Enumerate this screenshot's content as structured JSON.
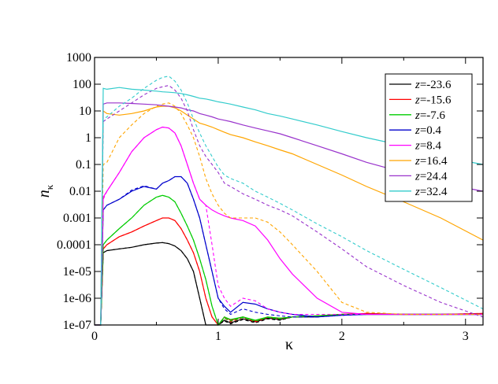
{
  "chart_data": {
    "type": "line",
    "xlabel": "κ",
    "ylabel": "n",
    "ylabel_subscript": "κ",
    "xlim": [
      0,
      3.14159
    ],
    "ylim": [
      1e-07,
      1000
    ],
    "yscale": "log",
    "x_ticks": [
      0,
      1,
      2,
      3
    ],
    "x_tick_labels": [
      "0",
      "1",
      "2",
      "3"
    ],
    "y_ticks": [
      1e-07,
      1e-06,
      1e-05,
      0.0001,
      0.001,
      0.01,
      0.1,
      1,
      10,
      100,
      1000
    ],
    "y_tick_labels": [
      "1e-07",
      "1e-06",
      "1e-05",
      "0.0001",
      "0.001",
      "0.01",
      "0.1",
      "1",
      "10",
      "100",
      "1000"
    ],
    "grid": false,
    "legend_position": "top-right",
    "line_styles": [
      "solid",
      "dashed"
    ],
    "series": [
      {
        "name": "z=-23.6",
        "legend_prefix": "z",
        "legend_value": "=-23.6",
        "color": "#000000",
        "x": [
          0,
          0.05,
          0.07,
          0.1,
          0.2,
          0.3,
          0.4,
          0.5,
          0.55,
          0.6,
          0.65,
          0.7,
          0.75,
          0.8,
          0.85,
          0.9,
          0.95,
          1.0,
          1.05,
          1.1,
          1.2,
          1.3,
          1.4,
          1.5,
          1.6,
          1.8,
          2.0,
          2.2,
          2.5,
          2.8,
          3.14
        ],
        "values": [
          1e-07,
          1e-07,
          5e-05,
          6e-05,
          7e-05,
          8e-05,
          0.0001,
          0.000115,
          0.00012,
          0.00011,
          9e-05,
          6e-05,
          3e-05,
          1e-05,
          1e-06,
          1e-07,
          1e-07,
          1e-07,
          1.5e-07,
          1.2e-07,
          1.7e-07,
          1.3e-07,
          1.8e-07,
          1.6e-07,
          2e-07,
          2e-07,
          2.5e-07,
          2.5e-07,
          2.5e-07,
          2.5e-07,
          2.5e-07
        ],
        "dashed_values": [
          1e-07,
          1e-07,
          5e-05,
          6e-05,
          7e-05,
          8e-05,
          0.0001,
          0.000115,
          0.00012,
          0.00011,
          9e-05,
          6e-05,
          3e-05,
          1e-05,
          1e-06,
          1e-07,
          1e-07,
          1e-07,
          1.4e-07,
          1.1e-07,
          1.6e-07,
          1.2e-07,
          1.7e-07,
          1.5e-07,
          2e-07,
          2e-07,
          2.5e-07,
          2.5e-07,
          2.5e-07,
          2.5e-07,
          2.5e-07
        ]
      },
      {
        "name": "z=-15.6",
        "legend_prefix": "z",
        "legend_value": "=-15.6",
        "color": "#ff0000",
        "x": [
          0,
          0.05,
          0.07,
          0.1,
          0.2,
          0.3,
          0.4,
          0.5,
          0.55,
          0.6,
          0.65,
          0.7,
          0.75,
          0.8,
          0.85,
          0.9,
          0.95,
          1.0,
          1.05,
          1.1,
          1.2,
          1.3,
          1.4,
          1.5,
          1.6,
          1.8,
          2.0,
          2.2,
          2.5,
          2.8,
          3.14
        ],
        "values": [
          1e-07,
          1e-07,
          7e-05,
          0.0001,
          0.0002,
          0.0003,
          0.0005,
          0.0008,
          0.001,
          0.001,
          0.0008,
          0.0004,
          0.00015,
          5e-05,
          1e-05,
          1e-06,
          2e-07,
          1e-07,
          2e-07,
          1.5e-07,
          2e-07,
          1.4e-07,
          2e-07,
          1.8e-07,
          2e-07,
          2.2e-07,
          2.5e-07,
          2.7e-07,
          2.5e-07,
          2.5e-07,
          2.7e-07
        ],
        "dashed_values": [
          1e-07,
          1e-07,
          7e-05,
          0.0001,
          0.0002,
          0.0003,
          0.0005,
          0.0008,
          0.001,
          0.001,
          0.0008,
          0.0004,
          0.00015,
          5e-05,
          1e-05,
          1e-06,
          2e-07,
          1e-07,
          1.8e-07,
          1.3e-07,
          1.9e-07,
          1.3e-07,
          1.9e-07,
          1.7e-07,
          2e-07,
          2.2e-07,
          2.5e-07,
          2.7e-07,
          2.5e-07,
          2.5e-07,
          2.7e-07
        ]
      },
      {
        "name": "z=-7.6",
        "legend_prefix": "z",
        "legend_value": "=-7.6",
        "color": "#00cc00",
        "x": [
          0,
          0.05,
          0.07,
          0.1,
          0.2,
          0.3,
          0.4,
          0.5,
          0.55,
          0.6,
          0.65,
          0.7,
          0.75,
          0.8,
          0.85,
          0.9,
          0.95,
          1.0,
          1.05,
          1.1,
          1.2,
          1.3,
          1.4,
          1.5,
          1.6,
          1.8,
          2.0,
          2.2,
          2.5,
          2.8,
          3.14
        ],
        "values": [
          1e-07,
          1e-07,
          0.0001,
          0.00015,
          0.0004,
          0.001,
          0.003,
          0.006,
          0.007,
          0.006,
          0.004,
          0.0015,
          0.0005,
          0.00015,
          3e-05,
          5e-06,
          5e-07,
          1e-07,
          2e-07,
          1.6e-07,
          2e-07,
          1.5e-07,
          2e-07,
          1.8e-07,
          2e-07,
          2.2e-07,
          2.5e-07,
          2.5e-07,
          2.5e-07,
          2.5e-07,
          2.5e-07
        ],
        "dashed_values": [
          1e-07,
          1e-07,
          0.0001,
          0.00015,
          0.0004,
          0.001,
          0.003,
          0.006,
          0.007,
          0.006,
          0.004,
          0.0015,
          0.0005,
          0.00015,
          3e-05,
          5e-06,
          5e-07,
          1e-07,
          1.8e-07,
          1.4e-07,
          1.9e-07,
          1.4e-07,
          1.9e-07,
          1.7e-07,
          2e-07,
          2.2e-07,
          2.5e-07,
          2.5e-07,
          2.5e-07,
          2.5e-07,
          2.5e-07
        ]
      },
      {
        "name": "z=0.4",
        "legend_prefix": "z",
        "legend_value": "=0.4",
        "color": "#0000cc",
        "x": [
          0,
          0.05,
          0.07,
          0.1,
          0.2,
          0.3,
          0.4,
          0.5,
          0.55,
          0.6,
          0.65,
          0.7,
          0.75,
          0.8,
          0.85,
          0.9,
          0.95,
          1.0,
          1.05,
          1.1,
          1.2,
          1.3,
          1.4,
          1.5,
          1.6,
          1.8,
          2.0,
          2.2,
          2.5,
          2.8,
          3.14
        ],
        "values": [
          1e-07,
          1e-07,
          0.002,
          0.003,
          0.005,
          0.01,
          0.015,
          0.012,
          0.02,
          0.025,
          0.035,
          0.035,
          0.02,
          0.005,
          0.001,
          0.0001,
          1e-05,
          1e-06,
          5e-07,
          3e-07,
          7e-07,
          6e-07,
          4e-07,
          3e-07,
          2.5e-07,
          2e-07,
          2.3e-07,
          2.5e-07,
          2.5e-07,
          2.5e-07,
          2.5e-07
        ],
        "dashed_values": [
          1e-07,
          1e-07,
          0.002,
          0.003,
          0.005,
          0.011,
          0.016,
          0.012,
          0.02,
          0.025,
          0.035,
          0.035,
          0.02,
          0.005,
          0.001,
          0.0001,
          1e-05,
          1e-06,
          4e-07,
          2.5e-07,
          4e-07,
          3e-07,
          2.5e-07,
          2.2e-07,
          2e-07,
          2e-07,
          2.3e-07,
          2.5e-07,
          2.5e-07,
          2.5e-07,
          2.5e-07
        ]
      },
      {
        "name": "z=8.4",
        "legend_prefix": "z",
        "legend_value": "=8.4",
        "color": "#ff00ff",
        "x": [
          0,
          0.05,
          0.07,
          0.1,
          0.2,
          0.3,
          0.4,
          0.5,
          0.55,
          0.6,
          0.65,
          0.7,
          0.75,
          0.8,
          0.85,
          0.9,
          0.95,
          1.0,
          1.05,
          1.1,
          1.2,
          1.3,
          1.4,
          1.5,
          1.6,
          1.8,
          2.0,
          2.2,
          2.5,
          2.8,
          3.14
        ],
        "values": [
          1e-07,
          1e-07,
          0.006,
          0.01,
          0.05,
          0.3,
          1,
          2,
          2.5,
          2.3,
          1.5,
          0.5,
          0.1,
          0.02,
          0.005,
          0.003,
          0.002,
          0.0015,
          0.0012,
          0.001,
          0.0008,
          0.0005,
          0.00015,
          3e-05,
          8e-06,
          1e-06,
          3e-07,
          2.5e-07,
          2.5e-07,
          2.5e-07,
          2.5e-07
        ],
        "dashed_values": [
          1e-07,
          1e-07,
          0.005,
          0.01,
          0.05,
          0.3,
          1,
          2,
          2.5,
          2.3,
          1.5,
          0.5,
          0.1,
          0.02,
          0.005,
          0.003,
          0.0001,
          3e-06,
          1e-06,
          5e-07,
          1e-06,
          8e-07,
          4e-07,
          3e-07,
          2.5e-07,
          2.5e-07,
          2.5e-07,
          2.5e-07,
          2.5e-07,
          2.5e-07,
          2.5e-07
        ]
      },
      {
        "name": "z=16.4",
        "legend_prefix": "z",
        "legend_value": "=16.4",
        "color": "#ffa500",
        "x": [
          0,
          0.05,
          0.07,
          0.1,
          0.2,
          0.3,
          0.4,
          0.5,
          0.55,
          0.6,
          0.65,
          0.7,
          0.75,
          0.8,
          0.85,
          0.9,
          0.95,
          1.0,
          1.05,
          1.1,
          1.2,
          1.3,
          1.4,
          1.5,
          1.6,
          1.8,
          2.0,
          2.2,
          2.5,
          2.8,
          3.14
        ],
        "values": [
          1e-07,
          1e-07,
          10,
          8,
          7,
          8,
          10,
          14,
          15,
          15,
          13,
          10,
          7,
          5,
          3.5,
          3,
          2.5,
          2,
          1.6,
          1.3,
          1,
          0.7,
          0.5,
          0.35,
          0.25,
          0.1,
          0.04,
          0.015,
          0.004,
          0.001,
          0.00015
        ],
        "dashed_values": [
          1e-07,
          1e-07,
          0.1,
          0.12,
          1,
          3,
          8,
          15,
          18,
          20,
          15,
          8,
          3,
          1,
          0.2,
          0.03,
          0.008,
          0.003,
          0.0015,
          0.001,
          0.001,
          0.001,
          0.0007,
          0.0003,
          0.0001,
          1e-05,
          7e-07,
          3e-07,
          2.5e-07,
          2.5e-07,
          2.5e-07
        ]
      },
      {
        "name": "z=24.4",
        "legend_prefix": "z",
        "legend_value": "=24.4",
        "color": "#9933cc",
        "x": [
          0,
          0.05,
          0.07,
          0.1,
          0.2,
          0.3,
          0.4,
          0.5,
          0.55,
          0.6,
          0.65,
          0.7,
          0.75,
          0.8,
          0.85,
          0.9,
          0.95,
          1.0,
          1.05,
          1.1,
          1.2,
          1.3,
          1.4,
          1.5,
          1.6,
          1.8,
          2.0,
          2.2,
          2.5,
          2.8,
          3.14
        ],
        "values": [
          1e-07,
          1e-07,
          18,
          20,
          20,
          19,
          18,
          17,
          16,
          15,
          14,
          13,
          11,
          10,
          8,
          7,
          6,
          5,
          4.5,
          4,
          3,
          2.3,
          1.8,
          1.4,
          1,
          0.5,
          0.25,
          0.12,
          0.05,
          0.02,
          0.01
        ],
        "dashed_values": [
          1e-07,
          1e-07,
          4,
          5,
          10,
          20,
          40,
          70,
          80,
          90,
          60,
          30,
          10,
          2,
          0.5,
          0.2,
          0.1,
          0.05,
          0.02,
          0.015,
          0.008,
          0.005,
          0.003,
          0.002,
          0.0012,
          0.0003,
          7e-05,
          1.5e-05,
          3e-06,
          7e-07,
          2e-07
        ]
      },
      {
        "name": "z=32.4",
        "legend_prefix": "z",
        "legend_value": "=32.4",
        "color": "#33cccc",
        "x": [
          0,
          0.05,
          0.07,
          0.1,
          0.2,
          0.3,
          0.4,
          0.5,
          0.55,
          0.6,
          0.65,
          0.7,
          0.75,
          0.8,
          0.85,
          0.9,
          0.95,
          1.0,
          1.05,
          1.1,
          1.2,
          1.3,
          1.4,
          1.5,
          1.6,
          1.8,
          2.0,
          2.2,
          2.5,
          2.8,
          3.14
        ],
        "values": [
          1e-07,
          1e-07,
          70,
          65,
          75,
          65,
          60,
          55,
          52,
          50,
          48,
          45,
          40,
          35,
          30,
          28,
          25,
          22,
          20,
          18,
          14,
          11,
          8,
          6.5,
          5,
          3,
          1.7,
          1,
          0.5,
          0.2,
          0.1
        ],
        "dashed_values": [
          1e-07,
          1e-07,
          5,
          6,
          15,
          30,
          70,
          140,
          180,
          200,
          130,
          60,
          20,
          5,
          1.5,
          0.5,
          0.2,
          0.08,
          0.04,
          0.03,
          0.02,
          0.01,
          0.006,
          0.0035,
          0.002,
          0.0006,
          0.0002,
          6e-05,
          1.2e-05,
          2.5e-06,
          4e-07
        ]
      }
    ]
  }
}
